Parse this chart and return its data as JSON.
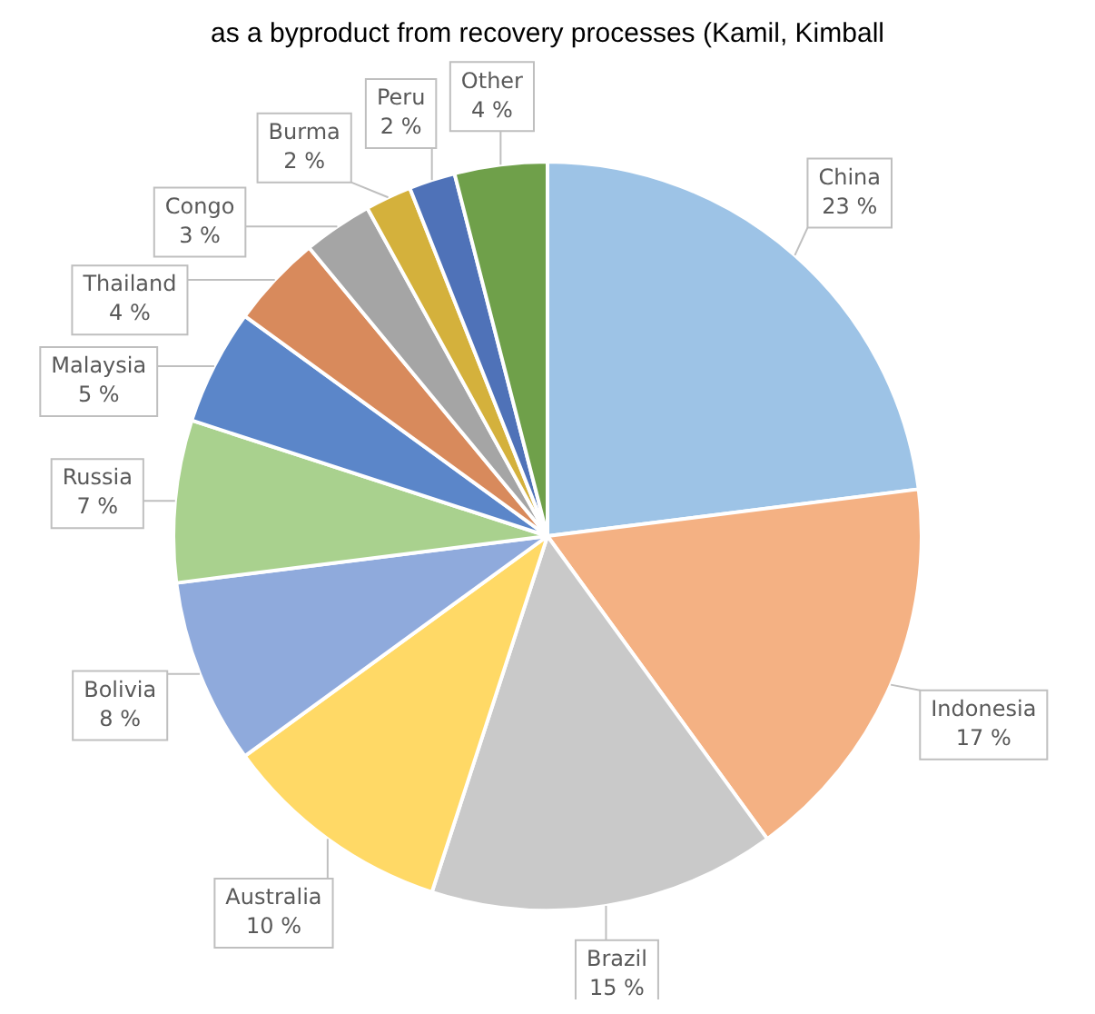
{
  "chart_data": {
    "type": "pie",
    "categories": [
      "China",
      "Indonesia",
      "Brazil",
      "Australia",
      "Bolivia",
      "Russia",
      "Malaysia",
      "Thailand",
      "Congo",
      "Burma",
      "Peru",
      "Other"
    ],
    "values": [
      23,
      17,
      15,
      10,
      8,
      7,
      5,
      4,
      3,
      2,
      2,
      4
    ],
    "value_labels": [
      "23 %",
      "17 %",
      "15 %",
      "10 %",
      "8 %",
      "7 %",
      "5 %",
      "4 %",
      "3 %",
      "2 %",
      "2 %",
      "4 %"
    ],
    "colors": [
      "#9dc3e6",
      "#f4b183",
      "#c9c9c9",
      "#ffd966",
      "#8faadc",
      "#a9d18e",
      "#5b86c9",
      "#d88a5c",
      "#a5a5a5",
      "#d4b13c",
      "#4f72b8",
      "#6fa04a"
    ],
    "legend": false,
    "annotations": [
      "as a byproduct from recovery processes (Kamil, Kimball"
    ]
  }
}
